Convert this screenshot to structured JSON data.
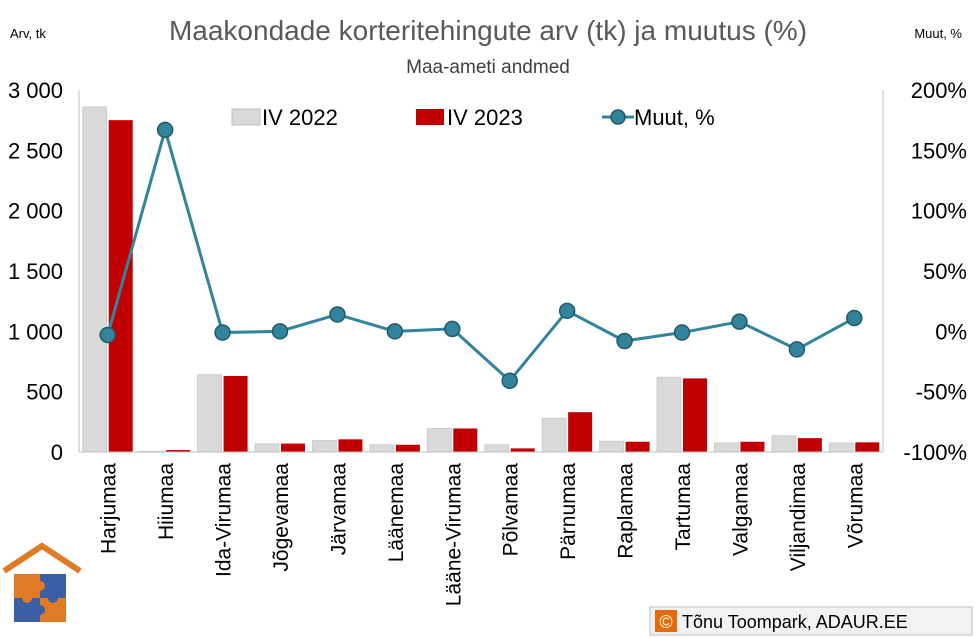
{
  "chart_data": {
    "type": "bar",
    "title": "Maakondade korteritehingute arv (tk) ja muutus (%)",
    "subtitle": "Maa-ameti andmed",
    "y_left_unit": "Arv, tk",
    "y_right_unit": "Muut, %",
    "categories": [
      "Harjumaa",
      "Hiiumaa",
      "Ida-Virumaa",
      "Jõgevamaa",
      "Järvamaa",
      "Läänemaa",
      "Lääne-Virumaa",
      "Põlvamaa",
      "Pärnumaa",
      "Raplamaa",
      "Tartumaa",
      "Valgamaa",
      "Viljandimaa",
      "Võrumaa"
    ],
    "y_left": {
      "lim": [
        0,
        3000
      ],
      "ticks": [
        0,
        500,
        1000,
        1500,
        2000,
        2500,
        3000
      ],
      "tick_labels": [
        "0",
        "500",
        "1 000",
        "1 500",
        "2 000",
        "2 500",
        "3 000"
      ]
    },
    "y_right": {
      "lim": [
        -100,
        200
      ],
      "ticks": [
        -100,
        -50,
        0,
        50,
        100,
        150,
        200
      ],
      "tick_labels": [
        "-100%",
        "-50%",
        "0%",
        "50%",
        "100%",
        "150%",
        "200%"
      ]
    },
    "series": [
      {
        "name": "IV 2022",
        "type": "bar",
        "axis": "left",
        "color": "#d9d9d9",
        "values": [
          2860,
          6,
          640,
          68,
          95,
          60,
          195,
          60,
          280,
          90,
          620,
          75,
          135,
          75
        ]
      },
      {
        "name": "IV 2023",
        "type": "bar",
        "axis": "left",
        "color": "#c00000",
        "values": [
          2750,
          16,
          630,
          70,
          105,
          60,
          195,
          30,
          330,
          85,
          610,
          85,
          115,
          80
        ]
      },
      {
        "name": "Muut, %",
        "type": "line",
        "axis": "right",
        "color": "#31849b",
        "values": [
          -3,
          167,
          -1,
          0,
          14,
          0,
          2,
          -41,
          17,
          -8,
          -1,
          8,
          -15,
          11
        ]
      }
    ],
    "legend_position": "top",
    "grid": false
  },
  "credit": {
    "symbol": "©",
    "text": "Tõnu Toompark, ADAUR.EE"
  },
  "logo": {
    "name": "house-puzzle-logo"
  }
}
